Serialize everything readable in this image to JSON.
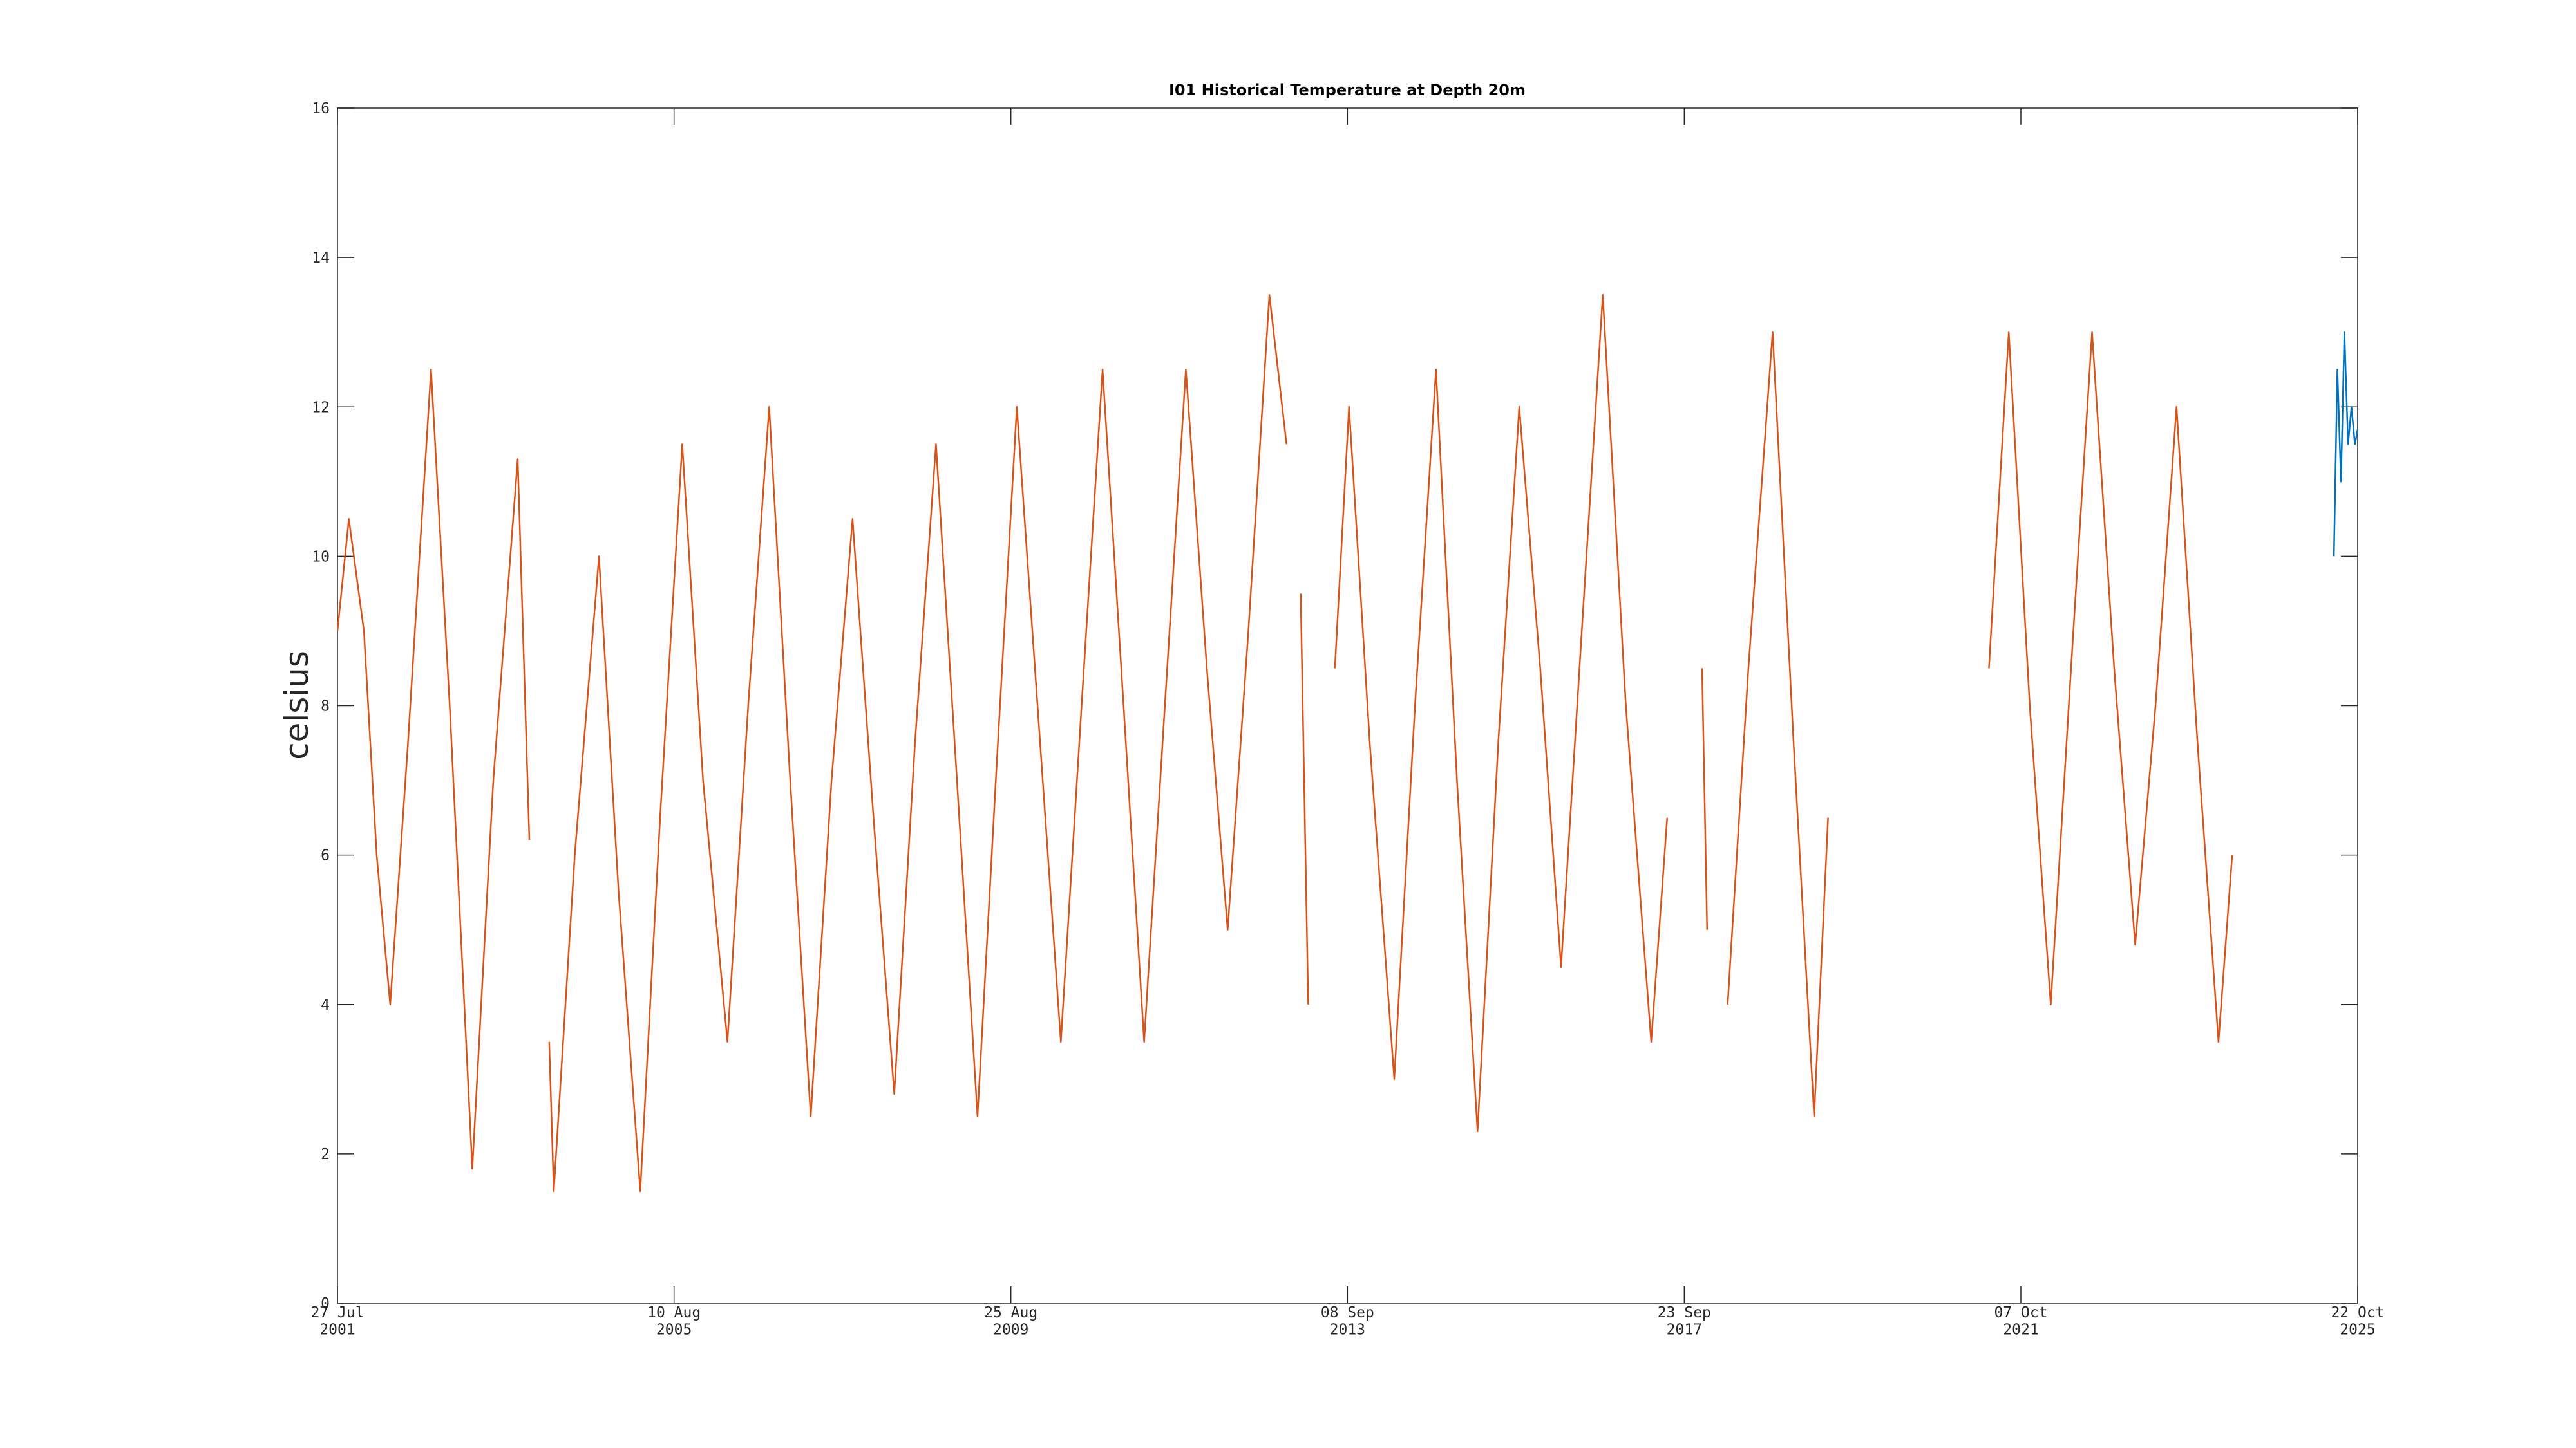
{
  "chart_data": {
    "type": "line",
    "title": "I01 Historical Temperature at Depth 20m",
    "ylabel": "celsius",
    "xlim": [
      "2001-07-27",
      "2025-10-22"
    ],
    "xticks": [
      {
        "value": "2001-07-27",
        "label": "27 Jul\n2001"
      },
      {
        "value": "2005-08-10",
        "label": "10 Aug\n2005"
      },
      {
        "value": "2009-08-25",
        "label": "25 Aug\n2009"
      },
      {
        "value": "2013-09-08",
        "label": "08 Sep\n2013"
      },
      {
        "value": "2017-09-23",
        "label": "23 Sep\n2017"
      },
      {
        "value": "2021-10-07",
        "label": "07 Oct\n2021"
      },
      {
        "value": "2025-10-22",
        "label": "22 Oct\n2025"
      }
    ],
    "ylim": [
      0,
      16
    ],
    "yticks": [
      0,
      2,
      4,
      6,
      8,
      10,
      12,
      14,
      16
    ],
    "series": [
      {
        "color": "#d95319",
        "x": [
          "2001-07-27",
          "2001-09-15",
          "2001-11-20",
          "2002-01-15",
          "2002-03-15",
          "2002-06-01",
          "2002-09-10",
          "2002-12-01",
          "2003-03-10",
          "2003-06-10",
          "2003-09-25",
          "2003-11-15",
          "2003-12-20",
          "2004-02-10",
          "2004-03-01",
          "2004-06-01",
          "2004-09-15",
          "2004-12-10",
          "2005-03-15",
          "2005-06-10",
          "2005-09-15",
          "2005-12-15",
          "2006-04-01",
          "2006-07-01",
          "2006-10-01",
          "2007-01-01",
          "2007-04-01",
          "2007-07-01",
          "2007-10-01",
          "2008-01-01",
          "2008-04-01",
          "2008-07-01",
          "2008-10-01",
          "2009-01-01",
          "2009-04-01",
          "2009-06-20",
          "2009-09-20",
          "2009-12-20",
          "2010-04-01",
          "2010-07-01",
          "2010-10-01",
          "2011-01-01",
          "2011-04-01",
          "2011-07-01",
          "2011-10-01",
          "2012-01-01",
          "2012-04-01",
          "2012-07-01",
          "2012-10-01",
          "2012-12-15",
          "2013-01-20",
          "2013-02-15",
          "2013-03-20",
          "2013-05-15",
          "2013-07-15",
          "2013-09-15",
          "2013-12-15",
          "2014-04-01",
          "2014-07-01",
          "2014-10-01",
          "2015-01-01",
          "2015-04-01",
          "2015-07-01",
          "2015-10-01",
          "2016-01-01",
          "2016-04-01",
          "2016-07-01",
          "2016-10-01",
          "2017-01-10",
          "2017-05-01",
          "2017-07-10",
          "2017-10-01",
          "2017-12-10",
          "2018-01-01",
          "2018-02-15",
          "2018-04-01",
          "2018-07-01",
          "2018-10-15",
          "2019-01-15",
          "2019-04-15",
          "2019-06-15",
          "2020-06-01",
          "2021-05-20",
          "2021-08-15",
          "2021-11-15",
          "2022-02-15",
          "2022-05-15",
          "2022-08-15",
          "2022-11-20",
          "2023-02-20",
          "2023-05-20",
          "2023-08-20",
          "2023-11-20",
          "2024-02-20",
          "2024-04-20"
        ],
        "values": [
          9,
          10.5,
          9,
          6,
          4,
          7.5,
          12.5,
          8,
          1.8,
          7,
          11.3,
          6.2,
          null,
          3.5,
          1.5,
          6,
          10,
          5.5,
          1.5,
          6.5,
          11.5,
          7,
          3.5,
          8,
          12,
          7,
          2.5,
          7,
          10.5,
          6.5,
          2.8,
          7.5,
          11.5,
          7,
          2.5,
          7,
          12,
          8,
          3.5,
          8,
          12.5,
          8,
          3.5,
          8,
          12.5,
          8.5,
          5,
          9,
          13.5,
          11.5,
          null,
          9.5,
          4,
          null,
          8.5,
          12,
          7.5,
          3,
          8,
          12.5,
          7,
          2.3,
          7.5,
          12,
          8.5,
          4.5,
          9,
          13.5,
          8,
          3.5,
          6.5,
          null,
          8.5,
          5,
          null,
          4,
          8.5,
          13,
          7.5,
          2.5,
          6.5,
          null,
          8.5,
          13,
          8,
          4,
          8.5,
          13,
          8.5,
          4.8,
          8,
          12,
          7.5,
          3.5,
          6
        ]
      },
      {
        "color": "#0072bd",
        "x": [
          "2025-07-10",
          "2025-07-25",
          "2025-08-10",
          "2025-08-25",
          "2025-09-10",
          "2025-09-25",
          "2025-10-10",
          "2025-10-22"
        ],
        "values": [
          10,
          12.5,
          11,
          13,
          11.5,
          12,
          11.5,
          11.7
        ]
      }
    ]
  }
}
